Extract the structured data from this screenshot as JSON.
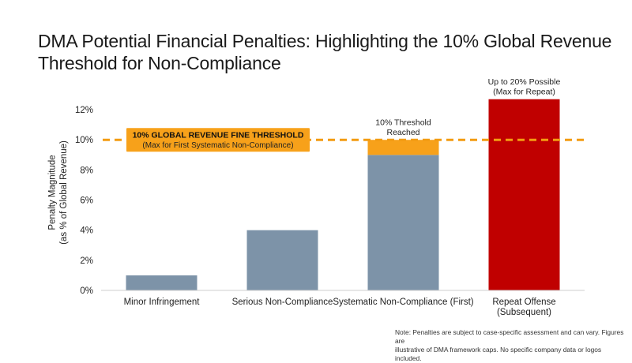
{
  "chart_data": {
    "type": "bar",
    "title": "DMA Potential Financial Penalties: Highlighting the 10% Global Revenue Threshold for Non-Compliance",
    "ylabel_line1": "Penalty Magnitude",
    "ylabel_line2": "(as % of Global Revenue)",
    "xlabel": "",
    "ylim": [
      0,
      13
    ],
    "yticks": [
      0,
      2,
      4,
      6,
      8,
      10,
      12
    ],
    "ytick_labels": [
      "0%",
      "2%",
      "4%",
      "6%",
      "8%",
      "10%",
      "12%"
    ],
    "categories": [
      "Minor Infringement",
      "Serious Non-Compliance",
      "Systematic Non-Compliance (First)",
      "Repeat Offense (Subsequent)"
    ],
    "category_lines": [
      [
        "Minor Infringement"
      ],
      [
        "Serious Non-Compliance"
      ],
      [
        "Systematic Non-Compliance (First)"
      ],
      [
        "Repeat Offense",
        "(Subsequent)"
      ]
    ],
    "series": [
      {
        "values": [
          1,
          4,
          9,
          0
        ],
        "color": "#7d93a8"
      },
      {
        "values": [
          0,
          0,
          1,
          0
        ],
        "color": "#f7a11a"
      },
      {
        "values": [
          0,
          0,
          0,
          12.7
        ],
        "color": "#c00000"
      }
    ],
    "threshold": {
      "value": 10,
      "color": "#f39c12",
      "label": "10% GLOBAL REVENUE FINE THRESHOLD",
      "sublabel": "(Max for First Systematic Non-Compliance)",
      "label_bg": "#f7a11a"
    },
    "annotations": [
      {
        "category_index": 2,
        "lines": [
          "10% Threshold",
          "Reached"
        ]
      },
      {
        "category_index": 3,
        "lines": [
          "Up to 20% Possible",
          "(Max for Repeat)"
        ]
      }
    ],
    "grid": false,
    "legend": "none"
  },
  "footnote": {
    "line1": "Note: Penalties are subject to case-specific assessment and can vary. Figures are",
    "line2": "illustrative of DMA framework caps. No specific company data or logos included."
  }
}
